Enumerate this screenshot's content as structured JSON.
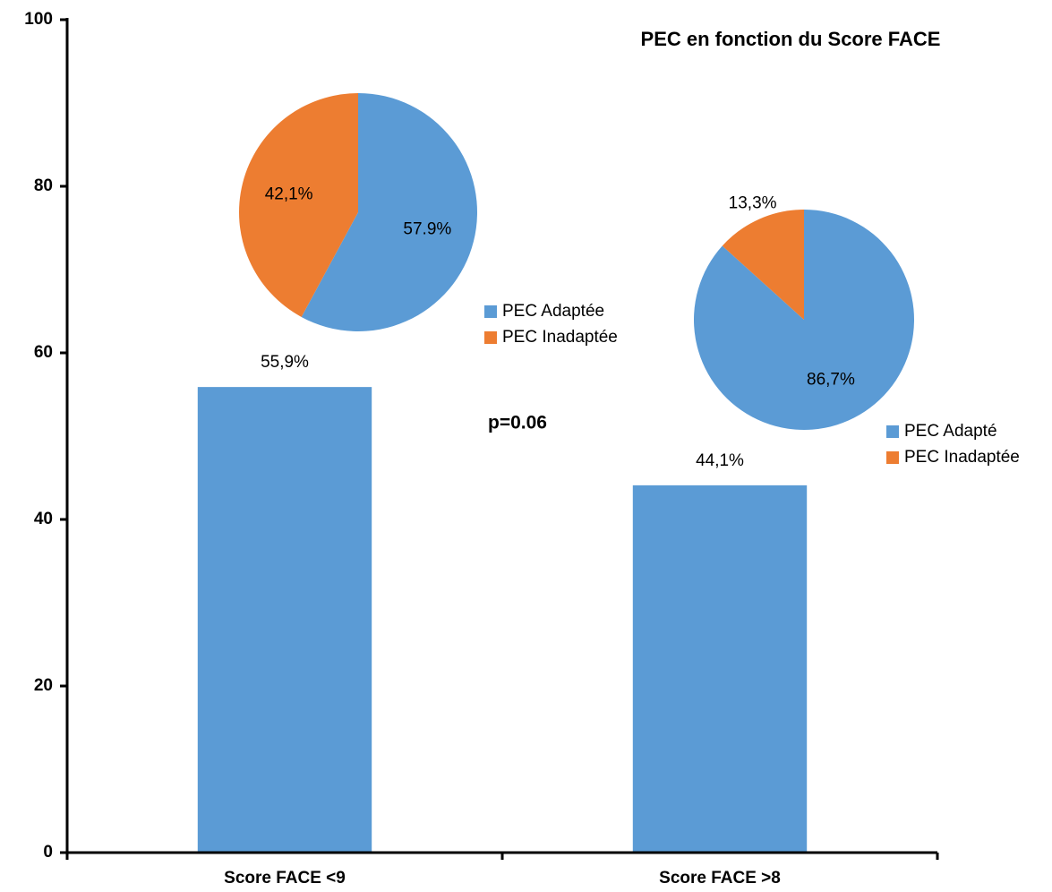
{
  "chart_data": [
    {
      "type": "bar",
      "title": "PEC en fonction du Score FACE",
      "categories": [
        "Score FACE <9",
        "Score FACE >8"
      ],
      "values": [
        55.9,
        44.1
      ],
      "value_labels": [
        "55,9%",
        "44,1%"
      ],
      "color": "#5b9bd5",
      "ylim": [
        0,
        100
      ],
      "yticks": [
        0,
        20,
        40,
        60,
        80,
        100
      ],
      "annotations": [
        "p=0.06"
      ]
    },
    {
      "type": "pie",
      "labels": [
        "PEC Adaptée",
        "PEC Inadaptée"
      ],
      "values": [
        57.9,
        42.1
      ],
      "value_labels": [
        "57.9%",
        "42,1%"
      ],
      "colors": [
        "#5b9bd5",
        "#ed7d31"
      ]
    },
    {
      "type": "pie",
      "labels": [
        "PEC Adapté",
        "PEC Inadaptée"
      ],
      "values": [
        86.7,
        13.3
      ],
      "value_labels": [
        "86,7%",
        "13,3%"
      ],
      "colors": [
        "#5b9bd5",
        "#ed7d31"
      ]
    }
  ]
}
